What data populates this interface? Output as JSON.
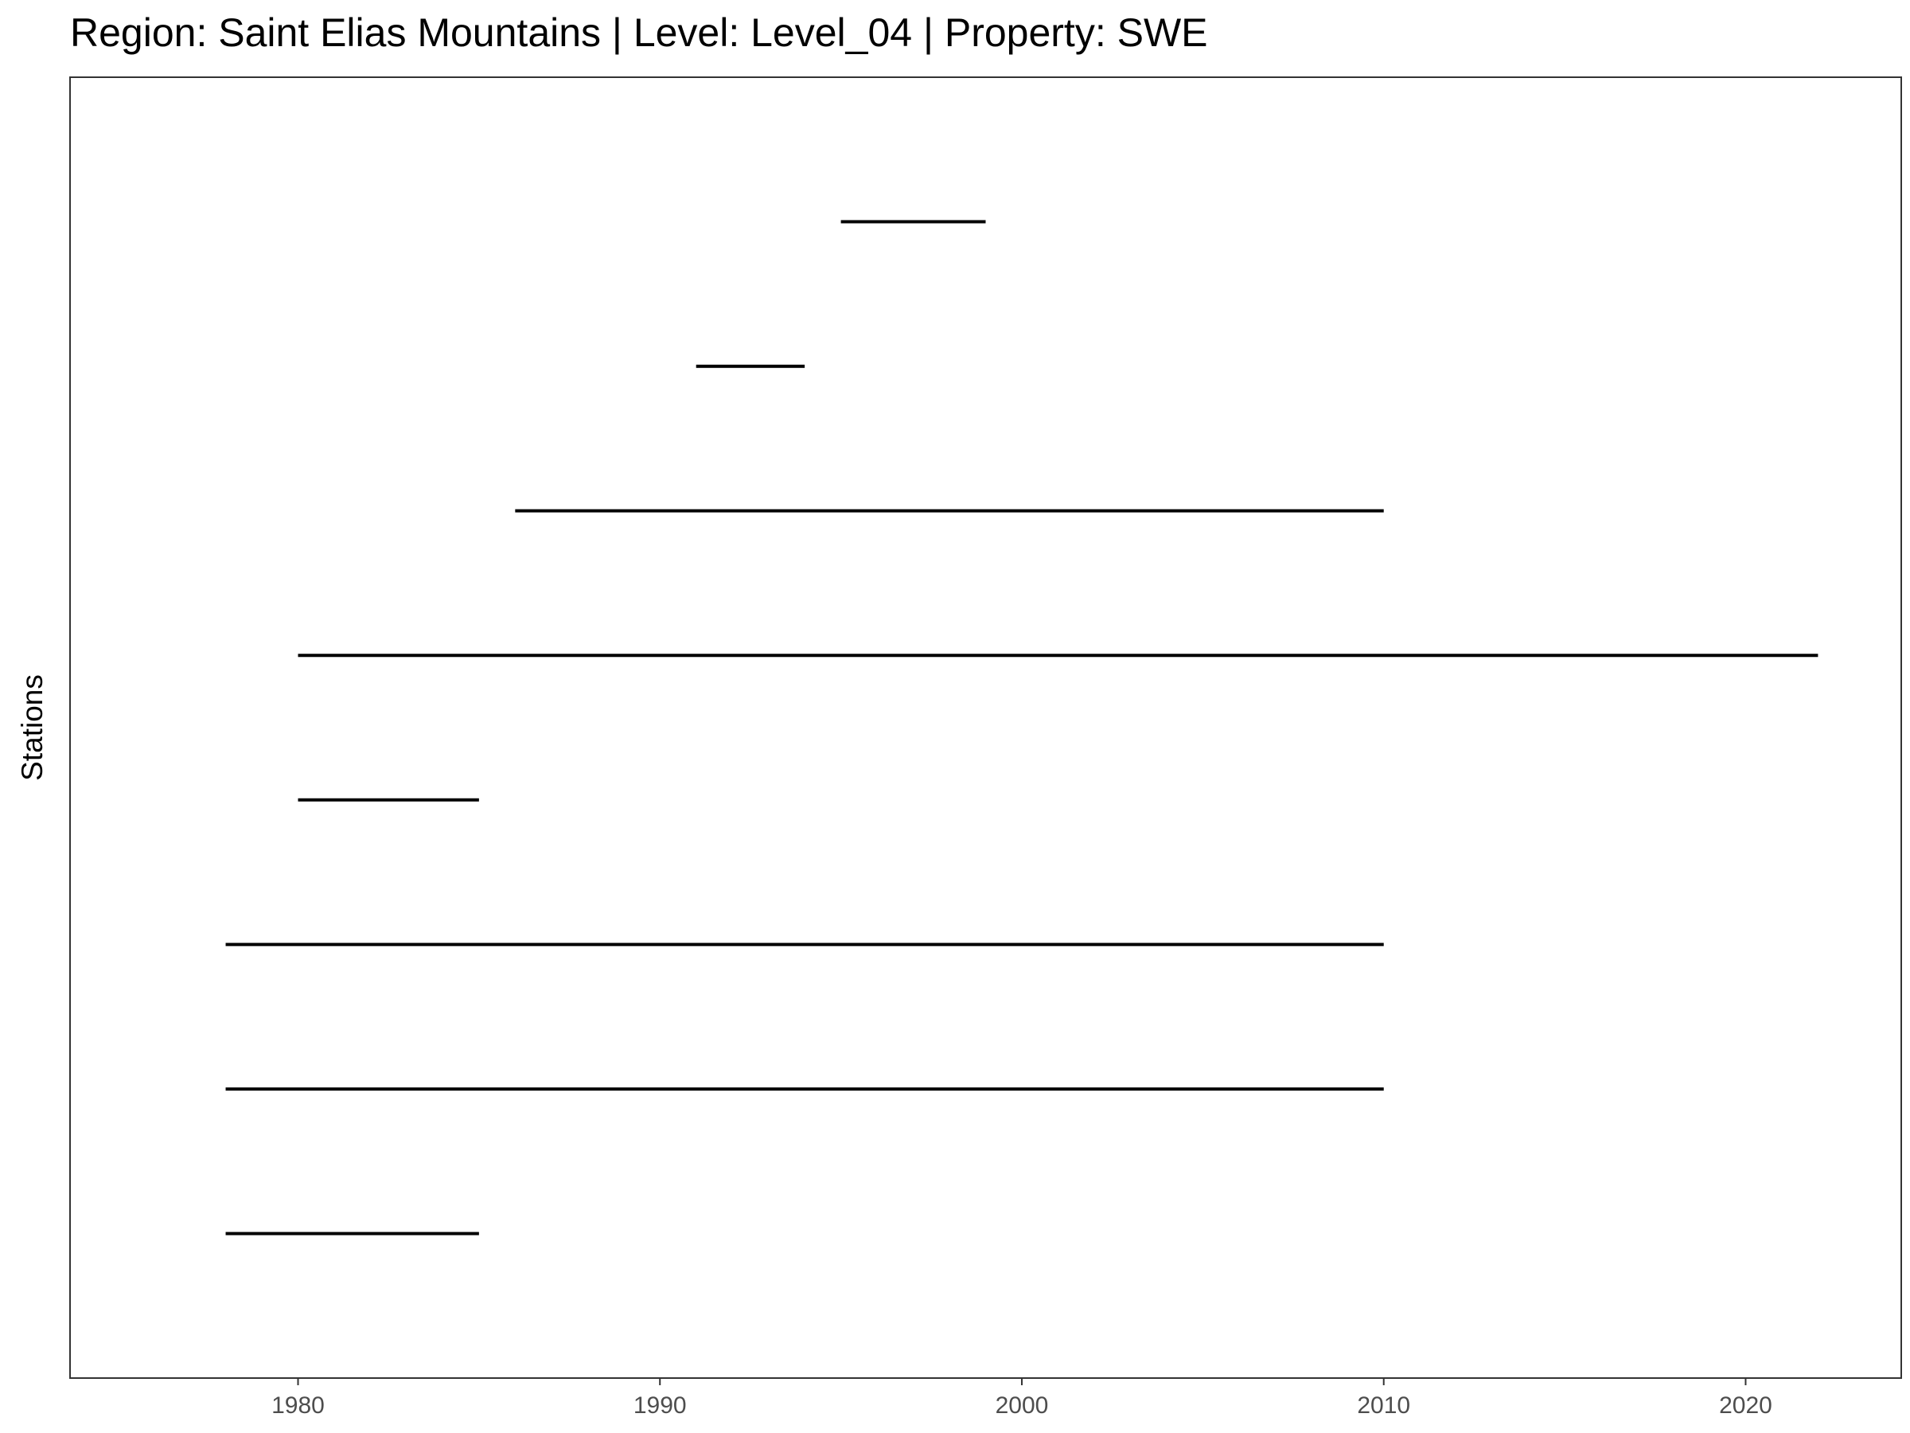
{
  "chart_data": {
    "type": "timeline",
    "title": "Region: Saint Elias Mountains | Level: Level_04 | Property: SWE",
    "xlabel": "",
    "ylabel": "Stations",
    "x_ticks": [
      1980,
      1990,
      2000,
      2010,
      2020
    ],
    "xlim": [
      1973.7,
      2024.3
    ],
    "grid": false,
    "legend": "none",
    "line_color": "#000000",
    "panel_border_color": "#333333",
    "segments": [
      {
        "start": 1978,
        "end": 1985
      },
      {
        "start": 1978,
        "end": 2010
      },
      {
        "start": 1978,
        "end": 2010
      },
      {
        "start": 1980,
        "end": 1985
      },
      {
        "start": 1980,
        "end": 2022
      },
      {
        "start": 1986,
        "end": 2010
      },
      {
        "start": 1991,
        "end": 1994
      },
      {
        "start": 1995,
        "end": 1999
      }
    ]
  }
}
